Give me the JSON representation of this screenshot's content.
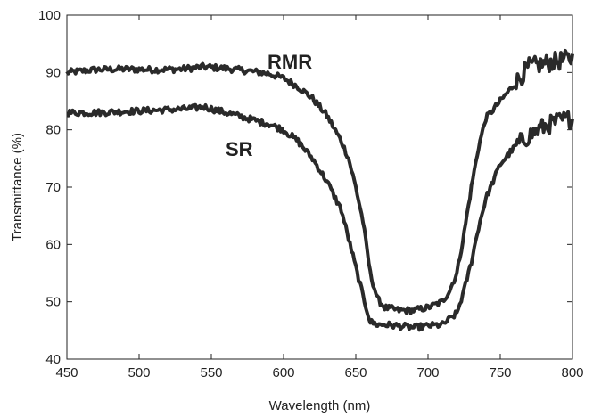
{
  "chart_data": {
    "type": "line",
    "xlabel": "Wavelength (nm)",
    "ylabel": "Transmittance (%)",
    "xlim": [
      450,
      800
    ],
    "ylim": [
      40,
      100
    ],
    "xticks": [
      450,
      500,
      550,
      600,
      650,
      700,
      750,
      800
    ],
    "yticks": [
      40,
      50,
      60,
      70,
      80,
      90,
      100
    ],
    "grid": false,
    "legend": "none",
    "series_color": "#2a2a2a",
    "series": [
      {
        "name": "RMR",
        "x": [
          450,
          470,
          490,
          510,
          530,
          545,
          560,
          575,
          590,
          600,
          610,
          620,
          630,
          640,
          645,
          650,
          655,
          660,
          665,
          670,
          680,
          690,
          700,
          710,
          715,
          720,
          725,
          730,
          735,
          740,
          750,
          760,
          770,
          780,
          790,
          800
        ],
        "y": [
          90,
          90.5,
          90.6,
          90.5,
          90.6,
          91,
          90.7,
          90.3,
          89.8,
          89,
          87.5,
          85.5,
          82.5,
          78,
          75,
          70,
          64,
          55,
          50.5,
          49,
          48.5,
          48.5,
          49,
          50,
          52,
          55,
          62,
          70,
          77,
          82,
          85,
          88,
          91,
          91.5,
          92,
          92.5
        ]
      },
      {
        "name": "SR",
        "x": [
          450,
          470,
          490,
          510,
          530,
          545,
          560,
          575,
          590,
          600,
          610,
          620,
          630,
          640,
          645,
          650,
          655,
          660,
          665,
          670,
          680,
          690,
          700,
          710,
          720,
          725,
          730,
          735,
          740,
          750,
          760,
          770,
          780,
          790,
          800
        ],
        "y": [
          83,
          83,
          83.2,
          83.4,
          83.6,
          84,
          83,
          82,
          81,
          80,
          78,
          75,
          71,
          66,
          61,
          56,
          51,
          46.5,
          46,
          46,
          45.8,
          45.5,
          45.8,
          46,
          48,
          52,
          57,
          63,
          68,
          74,
          77,
          79,
          80.5,
          81.5,
          82
        ]
      }
    ]
  }
}
